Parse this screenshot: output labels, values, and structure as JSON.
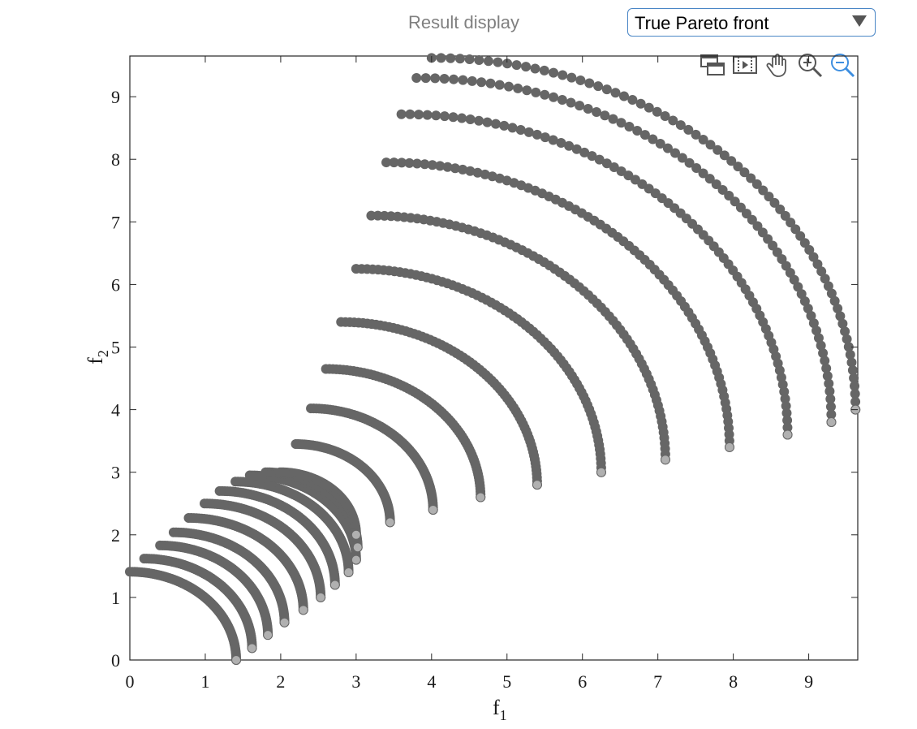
{
  "header": {
    "label": "Result display",
    "dropdown": {
      "selected": "True Pareto front"
    }
  },
  "toolbar": {
    "items": [
      {
        "icon": "copy-figure-icon"
      },
      {
        "icon": "export-icon"
      },
      {
        "icon": "pan-hand-icon"
      },
      {
        "icon": "zoom-in-icon"
      },
      {
        "icon": "zoom-out-icon"
      }
    ]
  },
  "chart_data": {
    "type": "scatter",
    "xlabel": "f1",
    "xlabel_main": "f",
    "xlabel_sub": "1",
    "ylabel": "f2",
    "ylabel_main": "f",
    "ylabel_sub": "2",
    "xlim": [
      0,
      9.65
    ],
    "ylim": [
      0,
      9.65
    ],
    "xticks": [
      0,
      1,
      2,
      3,
      4,
      5,
      6,
      7,
      8,
      9
    ],
    "yticks": [
      0,
      1,
      2,
      3,
      4,
      5,
      6,
      7,
      8,
      9
    ],
    "marker_color": "#666666",
    "endpoint_color": "#b0b0b0",
    "series": [
      {
        "start": [
          0,
          1.41
        ],
        "end": [
          1.41,
          0
        ]
      },
      {
        "start": [
          0.19,
          1.62
        ],
        "end": [
          1.62,
          0.19
        ]
      },
      {
        "start": [
          0.4,
          1.83
        ],
        "end": [
          1.83,
          0.4
        ]
      },
      {
        "start": [
          0.58,
          2.04
        ],
        "end": [
          2.05,
          0.6
        ]
      },
      {
        "start": [
          0.78,
          2.27
        ],
        "end": [
          2.3,
          0.8
        ]
      },
      {
        "start": [
          0.99,
          2.5
        ],
        "end": [
          2.53,
          1.0
        ]
      },
      {
        "start": [
          1.19,
          2.7
        ],
        "end": [
          2.72,
          1.2
        ]
      },
      {
        "start": [
          1.4,
          2.85
        ],
        "end": [
          2.9,
          1.4
        ]
      },
      {
        "start": [
          1.59,
          2.95
        ],
        "end": [
          3.0,
          1.6
        ]
      },
      {
        "start": [
          1.8,
          3.0
        ],
        "end": [
          3.02,
          1.8
        ]
      },
      {
        "start": [
          1.99,
          3.0
        ],
        "end": [
          3.0,
          2.0
        ]
      },
      {
        "start": [
          2.2,
          3.45
        ],
        "end": [
          3.45,
          2.2
        ]
      },
      {
        "start": [
          2.4,
          4.02
        ],
        "end": [
          4.02,
          2.4
        ]
      },
      {
        "start": [
          2.6,
          4.65
        ],
        "end": [
          4.65,
          2.6
        ]
      },
      {
        "start": [
          2.8,
          5.4
        ],
        "end": [
          5.4,
          2.8
        ]
      },
      {
        "start": [
          3.0,
          6.25
        ],
        "end": [
          6.25,
          3.0
        ]
      },
      {
        "start": [
          3.2,
          7.1
        ],
        "end": [
          7.1,
          3.2
        ]
      },
      {
        "start": [
          3.4,
          7.95
        ],
        "end": [
          7.95,
          3.4
        ]
      },
      {
        "start": [
          3.6,
          8.72
        ],
        "end": [
          8.72,
          3.6
        ]
      },
      {
        "start": [
          3.8,
          9.3
        ],
        "end": [
          9.3,
          3.8
        ]
      },
      {
        "start": [
          4.0,
          9.62
        ],
        "end": [
          9.62,
          4.0
        ]
      }
    ]
  }
}
